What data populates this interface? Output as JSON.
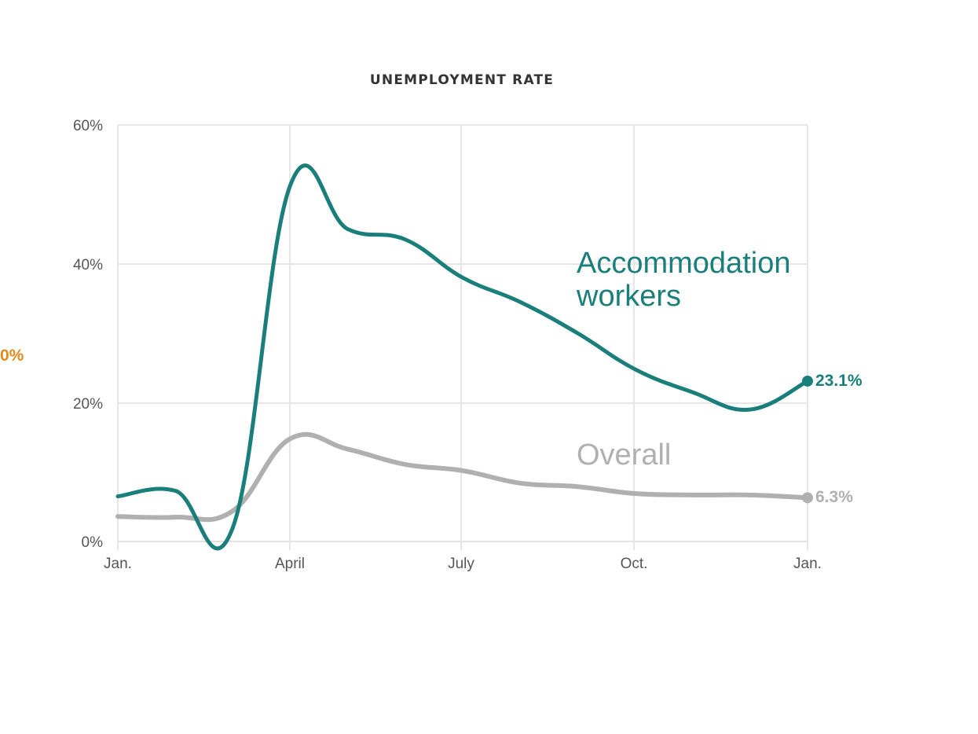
{
  "chart_data": {
    "type": "line",
    "title": "UNEMPLOYMENT RATE",
    "xlabel": "",
    "ylabel": "",
    "ylim": [
      0,
      60
    ],
    "yticks": [
      "0%",
      "20%",
      "40%",
      "60%"
    ],
    "xticks": [
      "Jan.",
      "April",
      "July",
      "Oct.",
      "Jan."
    ],
    "x": [
      "Jan",
      "Feb",
      "Mar",
      "Apr",
      "May",
      "Jun",
      "Jul",
      "Aug",
      "Sep",
      "Oct",
      "Nov",
      "Dec",
      "Jan"
    ],
    "grid": true,
    "legend_position": "inline labels",
    "series": [
      {
        "name": "Accommodation workers",
        "color": "#1a7f7a",
        "values": [
          6.5,
          7.3,
          2.0,
          51.3,
          45.0,
          43.5,
          38.0,
          34.5,
          30.0,
          24.8,
          21.5,
          19.0,
          23.1
        ],
        "end_label": "23.1%"
      },
      {
        "name": "Overall",
        "color": "#b0b0b0",
        "values": [
          3.6,
          3.5,
          4.4,
          14.8,
          13.3,
          11.1,
          10.2,
          8.4,
          7.9,
          6.9,
          6.7,
          6.7,
          6.3
        ],
        "end_label": "6.3%"
      }
    ]
  },
  "labels": {
    "title": "UNEMPLOYMENT RATE",
    "stray_left": "0%",
    "accommodation_line1": "Accommodation",
    "accommodation_line2": "workers",
    "overall": "Overall",
    "accommodation_end": "23.1%",
    "overall_end": "6.3%",
    "y_ticks": [
      "0%",
      "20%",
      "40%",
      "60%"
    ],
    "x_ticks": [
      "Jan.",
      "April",
      "July",
      "Oct.",
      "Jan."
    ]
  },
  "colors": {
    "accommodation": "#1a7f7a",
    "overall": "#b0b0b0",
    "stray_accent": "#e08a1e",
    "grid": "#e6e6e6"
  }
}
